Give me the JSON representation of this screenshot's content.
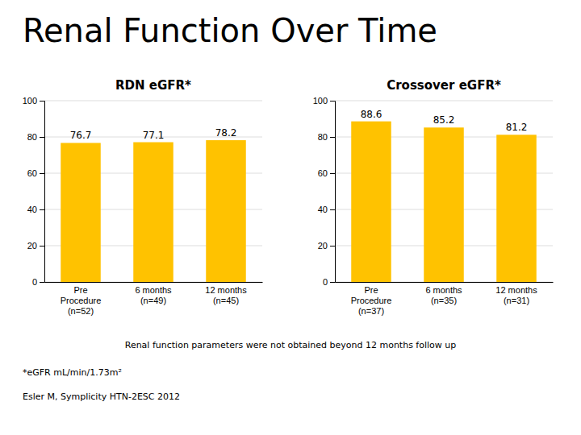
{
  "title": "Renal Function Over Time",
  "annotations": [
    "Renal function parameters were not obtained beyond 12 months follow up",
    "*eGFR mL/min/1.73m²",
    "Esler M, Symplicity HTN-2ESC 2012"
  ],
  "chart_data": [
    {
      "type": "bar",
      "title": "RDN eGFR*",
      "categories": [
        "Pre\nProcedure\n(n=52)",
        "6 months\n(n=49)",
        "12 months\n(n=45)"
      ],
      "values": [
        76.7,
        77.1,
        78.2
      ],
      "color": "#FFC200",
      "ylim": [
        0,
        100
      ],
      "yticks": [
        0,
        20,
        40,
        60,
        80,
        100
      ],
      "grid": true,
      "data_labels": true
    },
    {
      "type": "bar",
      "title": "Crossover eGFR*",
      "categories": [
        "Pre\nProcedure\n(n=37)",
        "6 months\n(n=35)",
        "12 months\n(n=31)"
      ],
      "values": [
        88.6,
        85.2,
        81.2
      ],
      "color": "#FFC200",
      "ylim": [
        0,
        100
      ],
      "yticks": [
        0,
        20,
        40,
        60,
        80,
        100
      ],
      "grid": true,
      "data_labels": true
    }
  ]
}
